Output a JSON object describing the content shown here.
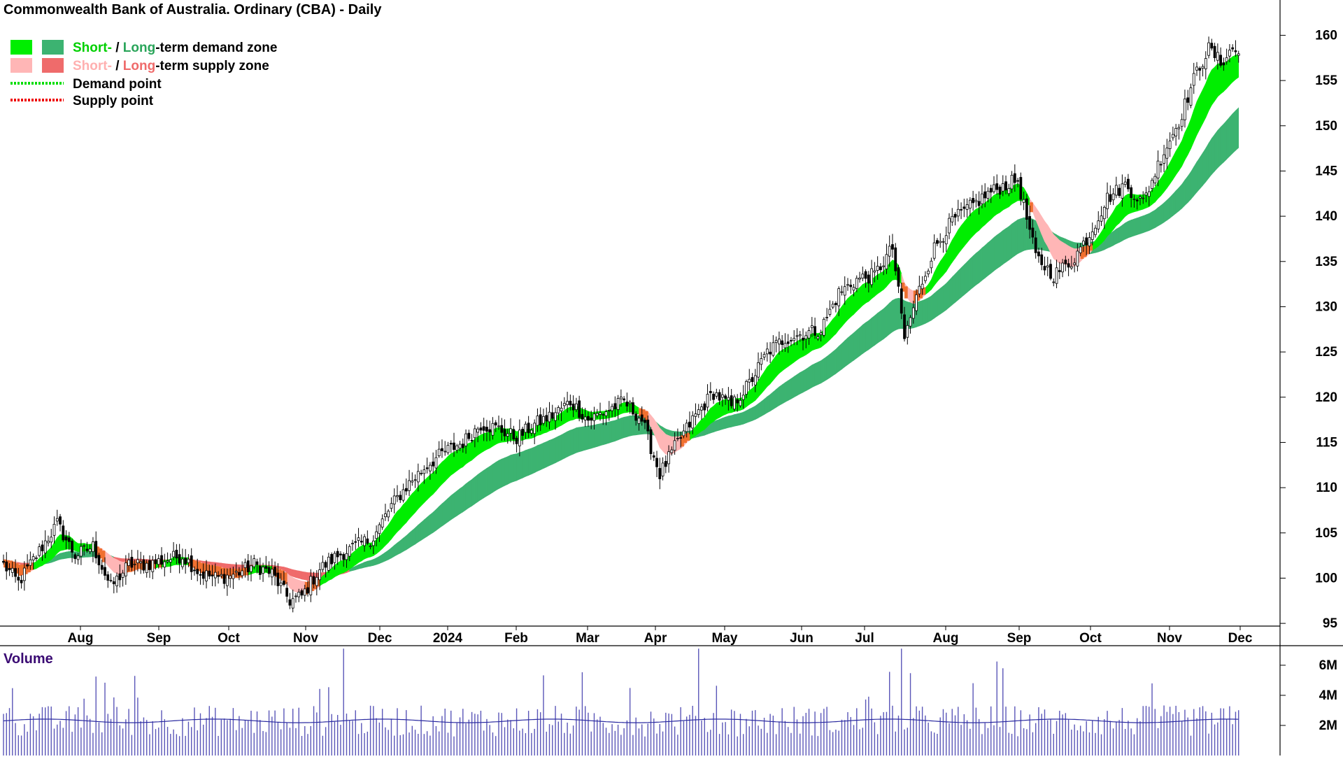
{
  "chart_data": {
    "type": "candlestick",
    "title": "Commonwealth Bank of Australia. Ordinary (CBA) - Daily",
    "legend": {
      "placement": "top-left",
      "zones": {
        "short": "Short-",
        "separator": " / ",
        "long": "Long",
        "demand_suffix": "-term demand zone",
        "supply_suffix": "-term supply zone"
      },
      "points": {
        "demand": "Demand point",
        "supply": "Supply point"
      }
    },
    "x_ticks": [
      "Aug",
      "Sep",
      "Oct",
      "Nov",
      "Dec",
      "2024",
      "Feb",
      "Mar",
      "Apr",
      "May",
      "Jun",
      "Jul",
      "Aug",
      "Sep",
      "Oct",
      "Nov",
      "Dec"
    ],
    "price_axis": {
      "ticks": [
        95,
        100,
        105,
        110,
        115,
        120,
        125,
        130,
        135,
        140,
        145,
        150,
        155,
        160
      ],
      "ylim": [
        94.7,
        163.9
      ]
    },
    "volume_axis": {
      "label": "Volume",
      "ticks": [
        "2M",
        "4M",
        "6M"
      ],
      "ylim": [
        0,
        7.3
      ]
    },
    "close_anchors": [
      [
        0,
        101.5
      ],
      [
        5,
        99.5
      ],
      [
        12,
        103.0
      ],
      [
        18,
        106.0
      ],
      [
        24,
        102.5
      ],
      [
        30,
        103.5
      ],
      [
        36,
        99.0
      ],
      [
        42,
        101.5
      ],
      [
        48,
        101.5
      ],
      [
        54,
        102.0
      ],
      [
        60,
        102.5
      ],
      [
        66,
        100.5
      ],
      [
        72,
        100.0
      ],
      [
        78,
        100.5
      ],
      [
        84,
        101.5
      ],
      [
        90,
        100.5
      ],
      [
        96,
        97.5
      ],
      [
        100,
        98.0
      ],
      [
        106,
        101.0
      ],
      [
        112,
        102.5
      ],
      [
        118,
        103.5
      ],
      [
        124,
        104.5
      ],
      [
        130,
        108.0
      ],
      [
        136,
        110.5
      ],
      [
        142,
        112.5
      ],
      [
        148,
        114.0
      ],
      [
        154,
        115.0
      ],
      [
        160,
        117.0
      ],
      [
        166,
        116.5
      ],
      [
        172,
        115.5
      ],
      [
        178,
        117.0
      ],
      [
        184,
        118.0
      ],
      [
        190,
        119.5
      ],
      [
        196,
        117.5
      ],
      [
        202,
        118.5
      ],
      [
        208,
        119.5
      ],
      [
        214,
        117.5
      ],
      [
        220,
        111.5
      ],
      [
        226,
        115.0
      ],
      [
        232,
        118.0
      ],
      [
        238,
        120.5
      ],
      [
        244,
        119.0
      ],
      [
        250,
        121.5
      ],
      [
        256,
        125.0
      ],
      [
        262,
        126.5
      ],
      [
        268,
        127.0
      ],
      [
        274,
        127.5
      ],
      [
        280,
        131.5
      ],
      [
        286,
        133.0
      ],
      [
        292,
        133.5
      ],
      [
        298,
        136.5
      ],
      [
        302,
        126.5
      ],
      [
        306,
        131.0
      ],
      [
        312,
        136.5
      ],
      [
        318,
        139.5
      ],
      [
        324,
        141.0
      ],
      [
        330,
        142.5
      ],
      [
        336,
        143.5
      ],
      [
        340,
        144.0
      ],
      [
        346,
        135.5
      ],
      [
        352,
        133.5
      ],
      [
        358,
        135.0
      ],
      [
        364,
        138.0
      ],
      [
        370,
        142.0
      ],
      [
        376,
        143.5
      ],
      [
        382,
        141.5
      ],
      [
        388,
        146.5
      ],
      [
        394,
        150.5
      ],
      [
        400,
        156.0
      ],
      [
        404,
        158.5
      ],
      [
        408,
        157.0
      ],
      [
        412,
        158.5
      ],
      [
        414,
        158.0
      ]
    ],
    "volume_baseline_M": 2.3
  }
}
